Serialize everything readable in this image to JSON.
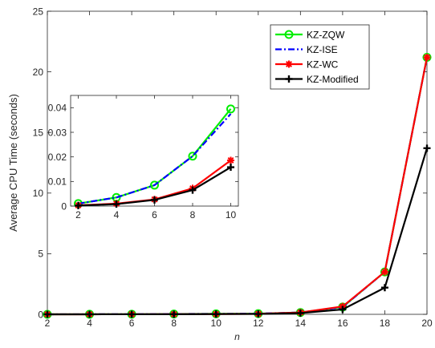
{
  "chart_data": [
    {
      "type": "line",
      "xlabel": "n",
      "ylabel": "Average CPU Time (seconds)",
      "xlim": [
        2,
        20
      ],
      "ylim": [
        0,
        25
      ],
      "xticks": [
        2,
        4,
        6,
        8,
        10,
        12,
        14,
        16,
        18,
        20
      ],
      "yticks": [
        0,
        5,
        10,
        15,
        20,
        25
      ],
      "x": [
        2,
        4,
        6,
        8,
        10,
        12,
        14,
        16,
        18,
        20
      ],
      "legend_position": "top-right",
      "series": [
        {
          "name": "KZ-ZQW",
          "color": "#00ee00",
          "style": "solid",
          "marker": "circle",
          "values": [
            0.002,
            0.005,
            0.012,
            0.027,
            0.04,
            0.06,
            0.15,
            0.6,
            3.5,
            21.2
          ]
        },
        {
          "name": "KZ-ISE",
          "color": "#0000ff",
          "style": "dashdot",
          "marker": "none",
          "values": [
            0.002,
            0.005,
            0.012,
            0.027,
            0.038,
            0.06,
            0.15,
            0.6,
            3.5,
            21.2
          ]
        },
        {
          "name": "KZ-WC",
          "color": "#ff0000",
          "style": "solid",
          "marker": "asterisk",
          "values": [
            0.001,
            0.002,
            0.005,
            0.011,
            0.025,
            0.04,
            0.15,
            0.65,
            3.5,
            21.2
          ]
        },
        {
          "name": "KZ-Modified",
          "color": "#000000",
          "style": "solid",
          "marker": "plus",
          "values": [
            0.001,
            0.002,
            0.005,
            0.01,
            0.021,
            0.03,
            0.1,
            0.4,
            2.2,
            13.7
          ]
        }
      ]
    },
    {
      "type": "line",
      "inset": true,
      "xlim": [
        1.6,
        10.4
      ],
      "ylim": [
        0,
        0.045
      ],
      "xticks": [
        2,
        4,
        6,
        8,
        10
      ],
      "yticks": [
        0,
        0.01,
        0.02,
        0.03,
        0.04
      ],
      "x": [
        2,
        4,
        6,
        8,
        10
      ],
      "series": [
        {
          "name": "KZ-ZQW",
          "values": [
            0.001,
            0.0035,
            0.0085,
            0.0203,
            0.0395
          ]
        },
        {
          "name": "KZ-ISE",
          "values": [
            0.001,
            0.0035,
            0.0085,
            0.0203,
            0.0375
          ]
        },
        {
          "name": "KZ-WC",
          "values": [
            0.0003,
            0.001,
            0.0027,
            0.0072,
            0.0186
          ]
        },
        {
          "name": "KZ-Modified",
          "values": [
            0.0002,
            0.0008,
            0.0025,
            0.0065,
            0.0158
          ]
        }
      ]
    }
  ]
}
